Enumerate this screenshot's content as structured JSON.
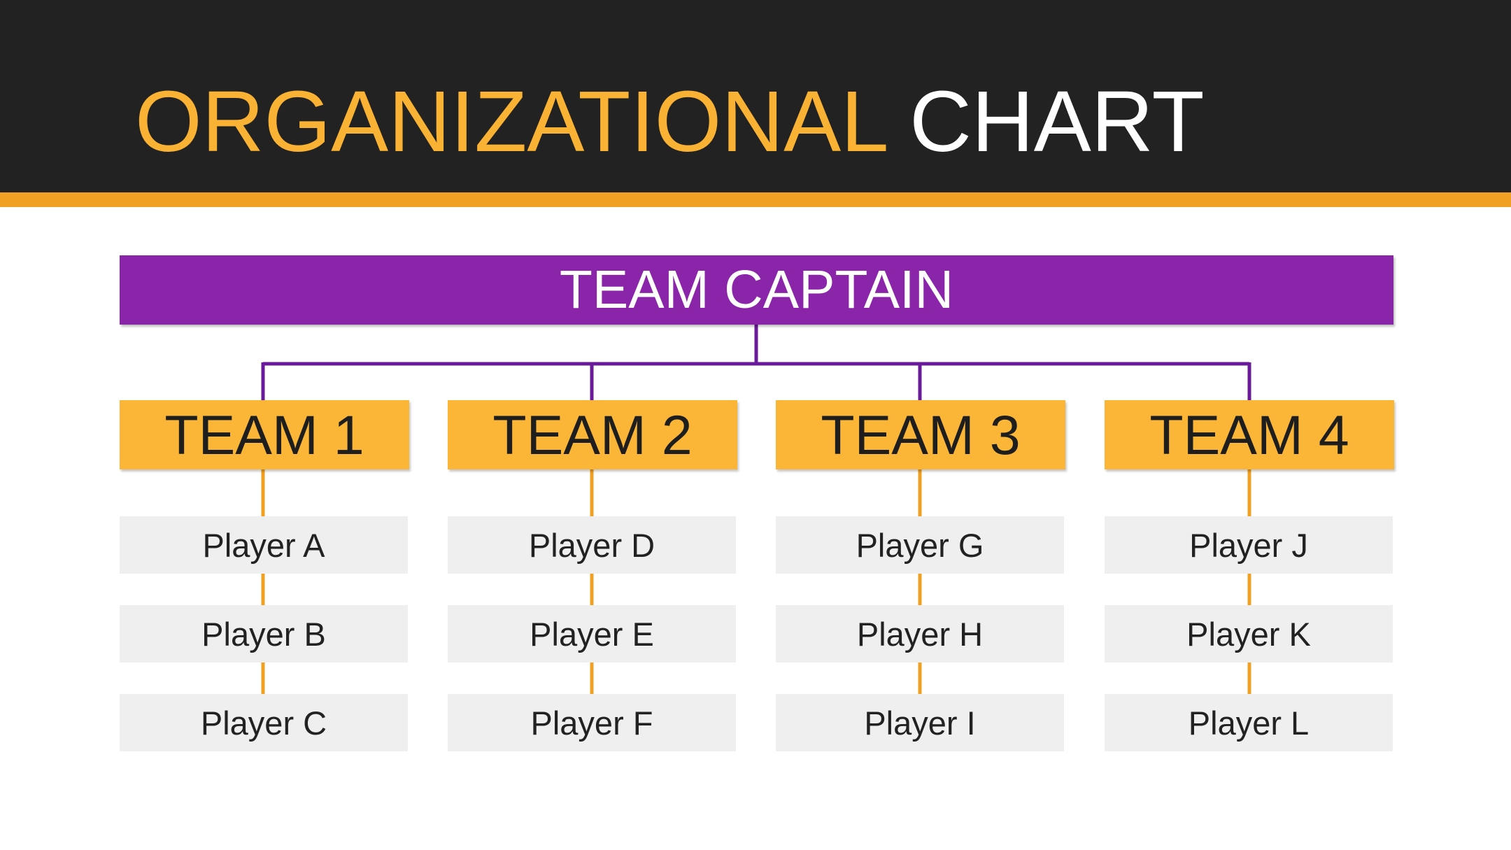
{
  "title": {
    "part1": "ORGANIZATIONAL",
    "part2": "CHART"
  },
  "captain": {
    "label": "TEAM CAPTAIN"
  },
  "teams": [
    {
      "label": "TEAM 1",
      "players": [
        "Player A",
        "Player B",
        "Player C"
      ]
    },
    {
      "label": "TEAM 2",
      "players": [
        "Player D",
        "Player E",
        "Player F"
      ]
    },
    {
      "label": "TEAM 3",
      "players": [
        "Player G",
        "Player H",
        "Player I"
      ]
    },
    {
      "label": "TEAM 4",
      "players": [
        "Player J",
        "Player K",
        "Player L"
      ]
    }
  ],
  "colors": {
    "header_background": "#222222",
    "accent": "#f0a023",
    "title_highlight": "#f9b233",
    "captain_fill": "#8a24a8",
    "connector_purple": "#6a1b9a",
    "team_fill": "#fbb637",
    "player_fill": "#efefef"
  }
}
